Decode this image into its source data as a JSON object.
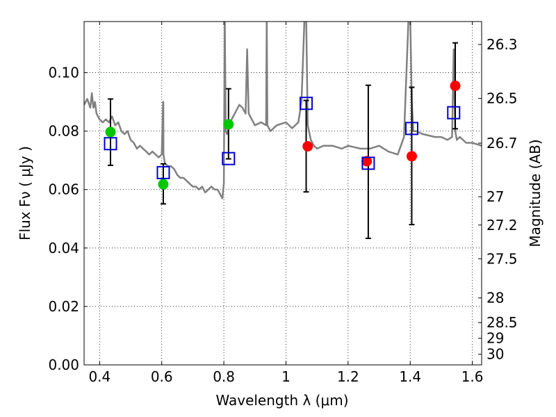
{
  "chart_data": {
    "type": "scatter",
    "xlabel": "Wavelength  λ (μm)",
    "ylabel": "Flux  Fν  ( μJy )",
    "ylabel_right": "Magnitude (AB)",
    "xlim": [
      0.35,
      1.63
    ],
    "ylim": [
      0.0,
      0.1175
    ],
    "grid": true,
    "x_ticks": [
      0.4,
      0.6,
      0.8,
      1.0,
      1.2,
      1.4,
      1.6
    ],
    "x_tick_labels": [
      "0.4",
      "0.6",
      "0.8",
      "1",
      "1.2",
      "1.4",
      "1.6"
    ],
    "y_ticks": [
      0.0,
      0.02,
      0.04,
      0.06,
      0.08,
      0.1
    ],
    "y_tick_labels": [
      "0.00",
      "0.02",
      "0.04",
      "0.06",
      "0.08",
      "0.10"
    ],
    "right_ticks": [
      {
        "label": "26.3",
        "mag": 26.3
      },
      {
        "label": "26.5",
        "mag": 26.5
      },
      {
        "label": "26.7",
        "mag": 26.7
      },
      {
        "label": "27",
        "mag": 27.0
      },
      {
        "label": "27.2",
        "mag": 27.2
      },
      {
        "label": "27.5",
        "mag": 27.5
      },
      {
        "label": "28",
        "mag": 28.0
      },
      {
        "label": "28.5",
        "mag": 28.5
      },
      {
        "label": "29",
        "mag": 29.0
      },
      {
        "label": "30",
        "mag": 30.0
      }
    ],
    "series": [
      {
        "marker": "line",
        "color": "#808080",
        "x": [
          0.35,
          0.36,
          0.37,
          0.375,
          0.38,
          0.385,
          0.39,
          0.4,
          0.41,
          0.42,
          0.43,
          0.44,
          0.45,
          0.46,
          0.47,
          0.48,
          0.49,
          0.5,
          0.51,
          0.52,
          0.53,
          0.54,
          0.55,
          0.56,
          0.57,
          0.58,
          0.59,
          0.6,
          0.6045,
          0.605,
          0.6055,
          0.61,
          0.62,
          0.63,
          0.64,
          0.65,
          0.66,
          0.67,
          0.68,
          0.69,
          0.7,
          0.71,
          0.72,
          0.73,
          0.74,
          0.75,
          0.76,
          0.77,
          0.78,
          0.79,
          0.795,
          0.8,
          0.803,
          0.806,
          0.81,
          0.815,
          0.82,
          0.83,
          0.84,
          0.85,
          0.86,
          0.87,
          0.875,
          0.88,
          0.89,
          0.9,
          0.92,
          0.936,
          0.938,
          0.94,
          0.945,
          0.95,
          0.97,
          1.0,
          1.02,
          1.04,
          1.05,
          1.06,
          1.065,
          1.07,
          1.08,
          1.09,
          1.1,
          1.12,
          1.15,
          1.18,
          1.2,
          1.24,
          1.27,
          1.3,
          1.33,
          1.36,
          1.38,
          1.395,
          1.4,
          1.405,
          1.41,
          1.42,
          1.44,
          1.48,
          1.5,
          1.52,
          1.535,
          1.54,
          1.545,
          1.55,
          1.56,
          1.58,
          1.6,
          1.63
        ],
        "y": [
          0.089,
          0.091,
          0.088,
          0.093,
          0.088,
          0.09,
          0.086,
          0.084,
          0.083,
          0.084,
          0.083,
          0.085,
          0.082,
          0.083,
          0.08,
          0.079,
          0.08,
          0.077,
          0.076,
          0.074,
          0.075,
          0.074,
          0.073,
          0.072,
          0.073,
          0.072,
          0.071,
          0.072,
          0.09,
          0.09,
          0.072,
          0.069,
          0.068,
          0.068,
          0.067,
          0.065,
          0.064,
          0.064,
          0.063,
          0.062,
          0.061,
          0.061,
          0.06,
          0.061,
          0.059,
          0.06,
          0.061,
          0.06,
          0.06,
          0.058,
          0.057,
          0.062,
          0.12,
          0.08,
          0.079,
          0.081,
          0.083,
          0.085,
          0.087,
          0.089,
          0.088,
          0.086,
          0.108,
          0.086,
          0.084,
          0.082,
          0.083,
          0.082,
          0.12,
          0.082,
          0.081,
          0.08,
          0.082,
          0.083,
          0.081,
          0.083,
          0.09,
          0.12,
          0.12,
          0.082,
          0.077,
          0.075,
          0.074,
          0.075,
          0.075,
          0.074,
          0.075,
          0.074,
          0.074,
          0.075,
          0.073,
          0.072,
          0.078,
          0.12,
          0.12,
          0.09,
          0.08,
          0.08,
          0.079,
          0.078,
          0.078,
          0.077,
          0.078,
          0.108,
          0.08,
          0.077,
          0.078,
          0.076,
          0.076,
          0.075
        ]
      },
      {
        "marker": "circle",
        "color": "#00c800",
        "x": [
          0.435,
          0.605,
          0.815
        ],
        "y": [
          0.0797,
          0.0618,
          0.0823
        ]
      },
      {
        "marker": "circle",
        "color": "#ff0000",
        "x": [
          1.07,
          1.26,
          1.405,
          1.545
        ],
        "y": [
          0.0748,
          0.0697,
          0.0714,
          0.0955
        ]
      },
      {
        "marker": "square",
        "color": "#0000cc",
        "x": [
          0.435,
          0.605,
          0.815,
          1.065,
          1.265,
          1.405,
          1.54
        ],
        "y": [
          0.0757,
          0.0658,
          0.0706,
          0.0895,
          0.069,
          0.0809,
          0.0863
        ]
      },
      {
        "marker": "errorbar",
        "color": "#000000",
        "x": [
          0.435,
          0.605,
          0.815,
          1.065,
          1.265,
          1.405,
          1.545
        ],
        "y": [
          0.0797,
          0.0618,
          0.0823,
          0.0748,
          0.0697,
          0.0714,
          0.0955
        ],
        "y_low": [
          0.0683,
          0.0551,
          0.0705,
          0.0592,
          0.0433,
          0.048,
          0.0808
        ],
        "y_high": [
          0.091,
          0.0688,
          0.0945,
          0.0905,
          0.0957,
          0.095,
          0.1102
        ]
      }
    ]
  }
}
